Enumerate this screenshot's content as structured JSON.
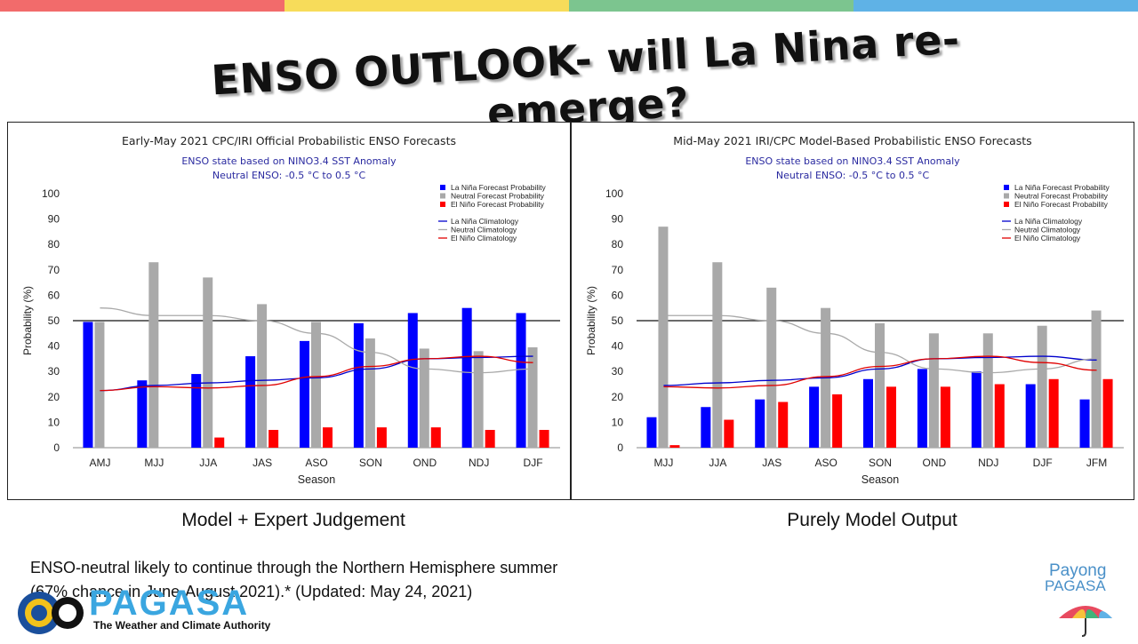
{
  "top_bar_colors": [
    "#f26b6b",
    "#f7dc5a",
    "#7cc58f",
    "#5fb2e6"
  ],
  "title": "ENSO OUTLOOK- will La Nina re-emerge?",
  "chart_data": [
    {
      "type": "bar",
      "title": "Early-May 2021 CPC/IRI Official Probabilistic ENSO Forecasts",
      "subtitle_lines": [
        "ENSO state based on NINO3.4 SST Anomaly",
        "Neutral ENSO: -0.5 °C to 0.5 °C"
      ],
      "xlabel": "Season",
      "ylabel": "Probability (%)",
      "ylim": [
        0,
        100
      ],
      "yticks": [
        0,
        10,
        20,
        30,
        40,
        50,
        60,
        70,
        80,
        90,
        100
      ],
      "reference_line": 50,
      "categories": [
        "AMJ",
        "MJJ",
        "JJA",
        "JAS",
        "ASO",
        "SON",
        "OND",
        "NDJ",
        "DJF"
      ],
      "series": [
        {
          "name": "La Niña Forecast Probability",
          "color": "#0000ff",
          "values": [
            49.5,
            26.5,
            29,
            36,
            42,
            49,
            53,
            55,
            53
          ]
        },
        {
          "name": "Neutral Forecast Probability",
          "color": "#a9a9a9",
          "values": [
            49.5,
            73,
            67,
            56.5,
            49.5,
            43,
            39,
            38,
            39.5
          ]
        },
        {
          "name": "El Niño Forecast Probability",
          "color": "#ff0000",
          "values": [
            0,
            0,
            4,
            7,
            8,
            8,
            8,
            7,
            7
          ]
        }
      ],
      "climatology": [
        {
          "name": "La Niña Climatology",
          "color": "#0000cc",
          "values": [
            22.5,
            24.5,
            25.5,
            26.5,
            27.5,
            31,
            35,
            35.5,
            36
          ]
        },
        {
          "name": "Neutral Climatology",
          "color": "#a9a9a9",
          "values": [
            55,
            52,
            52,
            50,
            45,
            37.5,
            31,
            29.5,
            31
          ]
        },
        {
          "name": "El Niño Climatology",
          "color": "#e00000",
          "values": [
            22.5,
            24,
            23.5,
            24.5,
            28,
            32,
            35,
            36,
            33.5
          ]
        }
      ],
      "legend_position": "top-right"
    },
    {
      "type": "bar",
      "title": "Mid-May 2021 IRI/CPC Model-Based Probabilistic ENSO Forecasts",
      "subtitle_lines": [
        "ENSO state based on NINO3.4 SST Anomaly",
        "Neutral ENSO: -0.5 °C to 0.5 °C"
      ],
      "xlabel": "Season",
      "ylabel": "Probability (%)",
      "ylim": [
        0,
        100
      ],
      "yticks": [
        0,
        10,
        20,
        30,
        40,
        50,
        60,
        70,
        80,
        90,
        100
      ],
      "reference_line": 50,
      "categories": [
        "MJJ",
        "JJA",
        "JAS",
        "ASO",
        "SON",
        "OND",
        "NDJ",
        "DJF",
        "JFM"
      ],
      "series": [
        {
          "name": "La Niña Forecast Probability",
          "color": "#0000ff",
          "values": [
            12,
            16,
            19,
            24,
            27,
            31,
            30,
            25,
            19
          ]
        },
        {
          "name": "Neutral Forecast Probability",
          "color": "#a9a9a9",
          "values": [
            87,
            73,
            63,
            55,
            49,
            45,
            45,
            48,
            54
          ]
        },
        {
          "name": "El Niño Forecast Probability",
          "color": "#ff0000",
          "values": [
            1,
            11,
            18,
            21,
            24,
            24,
            25,
            27,
            27
          ]
        }
      ],
      "climatology": [
        {
          "name": "La Niña Climatology",
          "color": "#0000cc",
          "values": [
            24.5,
            25.5,
            26.5,
            27.5,
            31,
            35,
            35.5,
            36,
            34.5
          ]
        },
        {
          "name": "Neutral Climatology",
          "color": "#a9a9a9",
          "values": [
            52,
            52,
            50,
            45,
            37.5,
            31,
            29.5,
            31,
            35
          ]
        },
        {
          "name": "El Niño Climatology",
          "color": "#e00000",
          "values": [
            24,
            23.5,
            24.5,
            28,
            32,
            35,
            36,
            33.5,
            30.5
          ]
        }
      ],
      "legend_position": "top-right"
    }
  ],
  "captions": {
    "left": "Model + Expert Judgement",
    "right": "Purely Model Output"
  },
  "note": {
    "line1": "ENSO-neutral likely to continue through the Northern Hemisphere summer",
    "line2": "(67% chance in June-August 2021).* (Updated: May 24, 2021)"
  },
  "logo_left": {
    "word": "PAGASA",
    "tagline": "The Weather and Climate Authority"
  },
  "logo_right": {
    "line1": "Payong",
    "line2": "PAGASA"
  }
}
